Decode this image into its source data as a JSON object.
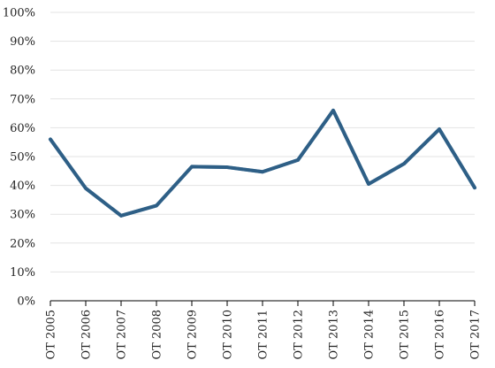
{
  "chart_data": {
    "type": "line",
    "title": "",
    "xlabel": "",
    "ylabel": "",
    "categories": [
      "OT 2005",
      "OT 2006",
      "OT 2007",
      "OT 2008",
      "OT 2009",
      "OT 2010",
      "OT 2011",
      "OT 2012",
      "OT 2013",
      "OT 2014",
      "OT 2015",
      "OT 2016",
      "OT 2017"
    ],
    "series": [
      {
        "values": [
          56,
          39,
          29.5,
          33,
          46.5,
          46.3,
          44.7,
          48.8,
          66,
          40.5,
          47.5,
          59.5,
          39.2
        ],
        "color": "#2e5f86",
        "outline_color": "#7fa8c6"
      }
    ],
    "ylim": [
      0,
      100
    ],
    "y_ticks": [
      "0%",
      "10%",
      "20%",
      "30%",
      "40%",
      "50%",
      "60%",
      "70%",
      "80%",
      "90%",
      "100%"
    ],
    "grid": "horizontal",
    "legend": "none"
  }
}
